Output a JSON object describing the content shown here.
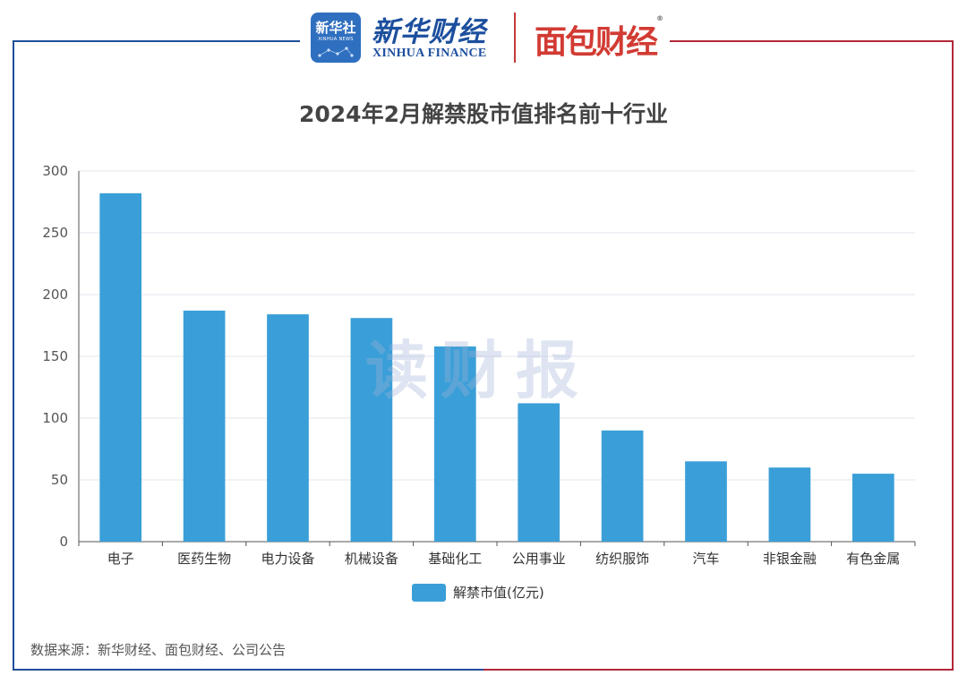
{
  "header": {
    "logo_badge": "新华社",
    "logo_badge_sub": "XINHUA NEWS",
    "brand_cn": "新华财经",
    "brand_en": "XINHUA FINANCE",
    "partner_brand": "面包财经",
    "registered_mark": "®"
  },
  "colors": {
    "bar": "#3a9fd8",
    "frame_left": "#1f4e9a",
    "frame_right": "#b3273a",
    "grid": "#e3e6ee",
    "axis": "#555555"
  },
  "watermark": "读财报",
  "chart_data": {
    "type": "bar",
    "title": "2024年2月解禁股市值排名前十行业",
    "categories": [
      "电子",
      "医药生物",
      "电力设备",
      "机械设备",
      "基础化工",
      "公用事业",
      "纺织服饰",
      "汽车",
      "非银金融",
      "有色金属"
    ],
    "series": [
      {
        "name": "解禁市值(亿元)",
        "values": [
          282,
          187,
          184,
          181,
          158,
          112,
          90,
          65,
          60,
          55
        ]
      }
    ],
    "ylim": [
      0,
      300
    ],
    "yticks": [
      0,
      50,
      100,
      150,
      200,
      250,
      300
    ],
    "grid": true,
    "legend_position": "bottom-center"
  },
  "footer": {
    "source": "数据来源：新华财经、面包财经、公司公告"
  }
}
